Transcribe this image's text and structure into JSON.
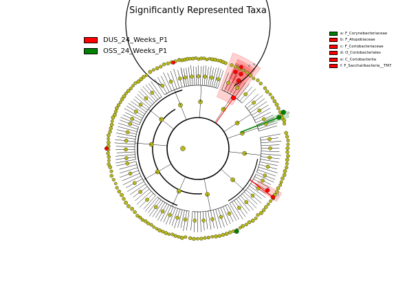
{
  "title": "Significantly Represented Taxa",
  "colors": {
    "DUS": "#ff0000",
    "OSS": "#008000",
    "node_fill": "#b8b818",
    "edge": "#000000"
  },
  "legend": [
    {
      "label": "DUS_24_Weeks_P1",
      "color": "#ff0000"
    },
    {
      "label": "OSS_24_Weeks_P1",
      "color": "#008000"
    }
  ],
  "clade_key": [
    {
      "text": "a: F_Corynebacteriaceae",
      "color": "#008000"
    },
    {
      "text": "b: F_Atopobiaceae",
      "color": "#ff0000"
    },
    {
      "text": "c: F_Coriobacteriaceae",
      "color": "#ff0000"
    },
    {
      "text": "d: O_Coriobacteriales",
      "color": "#ff0000"
    },
    {
      "text": "e: C_Coriobacteriia",
      "color": "#ff0000"
    },
    {
      "text": "f: F_Saccharibacteria__TM7",
      "color": "#ff0000"
    }
  ],
  "chart_data": {
    "type": "cladogram",
    "title": "Significantly Represented Taxa",
    "series": [
      {
        "name": "DUS_24_Weeks_P1",
        "color": "#ff0000"
      },
      {
        "name": "OSS_24_Weeks_P1",
        "color": "#008000"
      }
    ],
    "highlighted_clades": [
      {
        "letter": "a",
        "taxon": "F_Corynebacteriaceae",
        "group": "OSS_24_Weeks_P1"
      },
      {
        "letter": "b",
        "taxon": "F_Atopobiaceae",
        "group": "DUS_24_Weeks_P1"
      },
      {
        "letter": "c",
        "taxon": "F_Coriobacteriaceae",
        "group": "DUS_24_Weeks_P1"
      },
      {
        "letter": "d",
        "taxon": "O_Coriobacteriales",
        "group": "DUS_24_Weeks_P1"
      },
      {
        "letter": "e",
        "taxon": "C_Coriobacteriia",
        "group": "DUS_24_Weeks_P1"
      },
      {
        "letter": "f",
        "taxon": "F_Saccharibacteria__TM7",
        "group": "DUS_24_Weeks_P1"
      }
    ],
    "clade_letters": [
      "a",
      "b",
      "c",
      "d",
      "e",
      "f"
    ]
  }
}
